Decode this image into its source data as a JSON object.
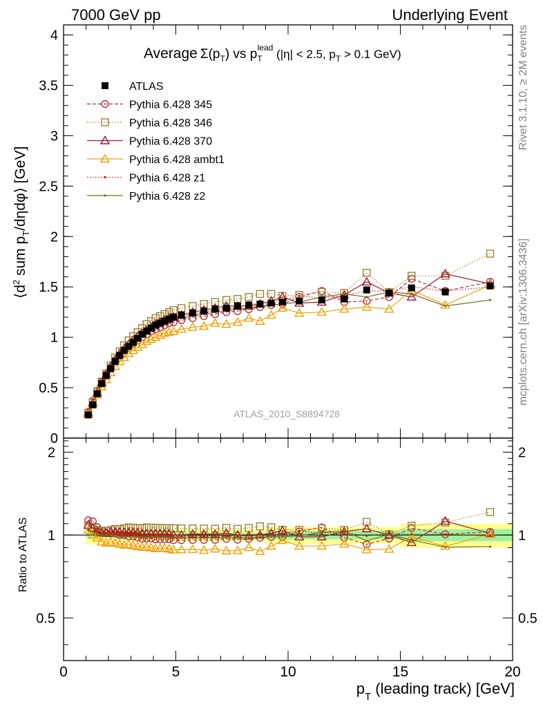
{
  "header": {
    "left": "7000 GeV pp",
    "right": "Underlying Event"
  },
  "side_labels": {
    "rivet": "Rivet 3.1.10, ≥ 2M events",
    "mcplots": "mcplots.cern.ch [arXiv:1306.3436]"
  },
  "chart_data": [
    {
      "type": "scatter",
      "panel": "main",
      "title_parts": {
        "a": "Average",
        "b": "Σ(p",
        "c": "T",
        "d": ") vs p",
        "e": "T",
        "f": "lead",
        "g": " (|η| < 2.5, p",
        "h": "T",
        "i": " > 0.1 GeV)"
      },
      "ylabel_parts": {
        "a": "⟨d",
        "b": "2",
        "c": " sum p",
        "d": "T",
        "e": "/dηdφ⟩ [GeV]"
      },
      "watermark": "ATLAS_2010_S8894728",
      "xlim": [
        0,
        20
      ],
      "ylim": [
        0,
        4.1
      ],
      "yticks": [
        0,
        0.5,
        1,
        1.5,
        2,
        2.5,
        3,
        3.5,
        4
      ],
      "ytick_labels": [
        "0",
        "0.5",
        "1",
        "1.5",
        "2",
        "2.5",
        "3",
        "3.5",
        "4"
      ],
      "legend_position": "top-left",
      "x": [
        1.1,
        1.3,
        1.5,
        1.7,
        1.9,
        2.1,
        2.3,
        2.5,
        2.7,
        2.9,
        3.1,
        3.3,
        3.5,
        3.7,
        3.9,
        4.1,
        4.3,
        4.5,
        4.7,
        4.9,
        5.25,
        5.75,
        6.25,
        6.75,
        7.25,
        7.75,
        8.25,
        8.75,
        9.25,
        9.75,
        10.5,
        11.5,
        12.5,
        13.5,
        14.5,
        15.5,
        17.0,
        19.0
      ],
      "series": [
        {
          "name": "ATLAS",
          "color": "#000000",
          "marker": "square-filled",
          "line": "none",
          "values": [
            0.23,
            0.33,
            0.44,
            0.54,
            0.62,
            0.69,
            0.76,
            0.82,
            0.87,
            0.91,
            0.95,
            0.99,
            1.03,
            1.06,
            1.09,
            1.12,
            1.14,
            1.16,
            1.18,
            1.2,
            1.22,
            1.24,
            1.26,
            1.28,
            1.29,
            1.31,
            1.32,
            1.33,
            1.34,
            1.35,
            1.36,
            1.37,
            1.38,
            1.47,
            1.44,
            1.49,
            1.45,
            1.51
          ]
        },
        {
          "name": "Pythia 6.428 345",
          "color": "#b03040",
          "marker": "circle-open",
          "line": "dashed",
          "values": [
            0.26,
            0.37,
            0.47,
            0.56,
            0.63,
            0.7,
            0.77,
            0.82,
            0.87,
            0.9,
            0.94,
            0.97,
            1.0,
            1.03,
            1.06,
            1.08,
            1.1,
            1.12,
            1.14,
            1.15,
            1.17,
            1.19,
            1.21,
            1.23,
            1.25,
            1.26,
            1.28,
            1.3,
            1.32,
            1.33,
            1.4,
            1.46,
            1.35,
            1.36,
            1.4,
            1.58,
            1.46,
            1.55
          ]
        },
        {
          "name": "Pythia 6.428 346",
          "color": "#a08030",
          "marker": "square-open",
          "line": "dotted",
          "values": [
            0.25,
            0.35,
            0.46,
            0.56,
            0.64,
            0.72,
            0.8,
            0.86,
            0.92,
            0.97,
            1.01,
            1.05,
            1.09,
            1.13,
            1.16,
            1.19,
            1.21,
            1.23,
            1.25,
            1.27,
            1.29,
            1.31,
            1.33,
            1.35,
            1.37,
            1.38,
            1.4,
            1.43,
            1.43,
            1.41,
            1.42,
            1.45,
            1.44,
            1.64,
            1.45,
            1.61,
            1.61,
            1.83
          ]
        },
        {
          "name": "Pythia 6.428 370",
          "color": "#9e1828",
          "marker": "triangle-open",
          "line": "solid",
          "values": [
            0.25,
            0.35,
            0.45,
            0.55,
            0.63,
            0.71,
            0.78,
            0.84,
            0.89,
            0.93,
            0.97,
            1.01,
            1.04,
            1.07,
            1.1,
            1.13,
            1.15,
            1.17,
            1.19,
            1.2,
            1.22,
            1.25,
            1.27,
            1.29,
            1.31,
            1.31,
            1.31,
            1.33,
            1.36,
            1.4,
            1.34,
            1.35,
            1.42,
            1.55,
            1.44,
            1.4,
            1.63,
            1.53
          ]
        },
        {
          "name": "Pythia 6.428 ambt1",
          "color": "#f0a000",
          "marker": "triangle-open",
          "line": "solid",
          "values": [
            0.24,
            0.33,
            0.43,
            0.51,
            0.58,
            0.65,
            0.71,
            0.76,
            0.8,
            0.84,
            0.87,
            0.9,
            0.93,
            0.96,
            0.98,
            1.0,
            1.02,
            1.04,
            1.05,
            1.06,
            1.08,
            1.1,
            1.11,
            1.14,
            1.13,
            1.15,
            1.19,
            1.16,
            1.22,
            1.29,
            1.24,
            1.25,
            1.28,
            1.3,
            1.28,
            1.47,
            1.32,
            1.52
          ]
        },
        {
          "name": "Pythia 6.428 z1",
          "color": "#cc2200",
          "marker": "dot",
          "line": "dotted",
          "values": [
            0.24,
            0.34,
            0.45,
            0.55,
            0.63,
            0.7,
            0.77,
            0.83,
            0.88,
            0.92,
            0.96,
            1.0,
            1.03,
            1.06,
            1.09,
            1.12,
            1.14,
            1.16,
            1.18,
            1.19,
            1.21,
            1.23,
            1.25,
            1.27,
            1.29,
            1.3,
            1.32,
            1.34,
            1.35,
            1.37,
            1.41,
            1.39,
            1.41,
            1.46,
            1.46,
            1.5,
            1.46,
            1.5
          ]
        },
        {
          "name": "Pythia 6.428 z2",
          "color": "#707010",
          "marker": "dot",
          "line": "solid",
          "values": [
            0.24,
            0.34,
            0.44,
            0.54,
            0.62,
            0.69,
            0.76,
            0.81,
            0.86,
            0.9,
            0.94,
            0.98,
            1.01,
            1.04,
            1.07,
            1.1,
            1.12,
            1.14,
            1.16,
            1.17,
            1.19,
            1.21,
            1.23,
            1.25,
            1.26,
            1.28,
            1.29,
            1.31,
            1.32,
            1.33,
            1.35,
            1.4,
            1.43,
            1.4,
            1.45,
            1.43,
            1.31,
            1.37
          ]
        }
      ]
    },
    {
      "type": "scatter",
      "panel": "ratio",
      "ylabel": "Ratio to ATLAS",
      "xlabel_parts": {
        "a": "p",
        "b": "T",
        "c": " (leading track) [GeV]"
      },
      "xlim": [
        0,
        20
      ],
      "ylim": [
        0.35,
        2.25
      ],
      "yticks": [
        0.5,
        1,
        2
      ],
      "ytick_labels": [
        "0.5",
        "1",
        "2"
      ],
      "xticks": [
        0,
        5,
        10,
        15,
        20
      ],
      "xtick_labels": [
        "0",
        "5",
        "10",
        "15",
        "20"
      ],
      "reference_line": 1,
      "bands": {
        "stat_color": "#a0f0a0",
        "total_color": "#ffff90"
      }
    }
  ]
}
